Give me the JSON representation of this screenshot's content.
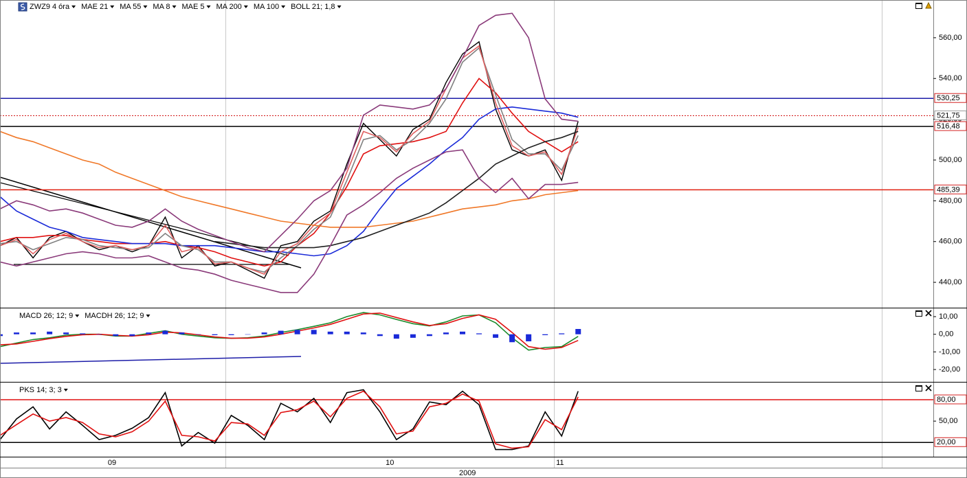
{
  "chart_data": [
    {
      "type": "line",
      "xlim": [
        0,
        56.5
      ],
      "ylim": [
        427.9,
        578.5
      ],
      "x": [
        0,
        1,
        2,
        3,
        4,
        5,
        6,
        7,
        8,
        9,
        10,
        11,
        12,
        13,
        14,
        15,
        16,
        17,
        18,
        19,
        20,
        21,
        22,
        23,
        24,
        25,
        26,
        27,
        28,
        29,
        30,
        31,
        32,
        33,
        34,
        35
      ],
      "yticks": [
        {
          "value": 440,
          "label": "440,00"
        },
        {
          "value": 460,
          "label": "460,00"
        },
        {
          "value": 480,
          "label": "480,00"
        },
        {
          "value": 500,
          "label": "500,00"
        },
        {
          "value": 520,
          "label": "520,00"
        },
        {
          "value": 540,
          "label": "540,00"
        },
        {
          "value": 560,
          "label": "560,00"
        }
      ],
      "levels": [
        {
          "value": 530.25,
          "label": "530,25",
          "color": "#1c1ca8",
          "label_color": "#d42020",
          "dash": false
        },
        {
          "value": 521.75,
          "label": "521,75",
          "color": "#d42020",
          "label_color": "#333333",
          "dash": true
        },
        {
          "value": 516.48,
          "label": "516,48",
          "color": "#000000",
          "label_color": "#d42020",
          "dash": false
        },
        {
          "value": 485.39,
          "label": "485,39",
          "color": "#e02010",
          "label_color": "#d42020",
          "dash": false
        }
      ],
      "series": [
        {
          "name": "ZWZ9 4 óra",
          "color": "#000000",
          "values": [
            458,
            462,
            452,
            462,
            465,
            460,
            456,
            458,
            455,
            458,
            472,
            452,
            458,
            448,
            450,
            446,
            442,
            458,
            460,
            470,
            475,
            498,
            518,
            510,
            502,
            515,
            520,
            538,
            552,
            558,
            525,
            505,
            502,
            505,
            490,
            519
          ]
        },
        {
          "name": "MAE 21",
          "color": "#e01010",
          "values": [
            460,
            462,
            462,
            463,
            463,
            461,
            460,
            459,
            459,
            459,
            460,
            458,
            457,
            455,
            452,
            450,
            448,
            450,
            458,
            464,
            474,
            487,
            503,
            507,
            508,
            509,
            511,
            514,
            528,
            540,
            533,
            523,
            514,
            509,
            504,
            509
          ]
        },
        {
          "name": "MA 55",
          "color": "#1a2ad8",
          "values": [
            482,
            475,
            471,
            467,
            465,
            462,
            461,
            460,
            459,
            459,
            459,
            458,
            458,
            458,
            457,
            456,
            455,
            455,
            454,
            453,
            454,
            458,
            465,
            476,
            486,
            492,
            498,
            505,
            511,
            520,
            525,
            526,
            525,
            524,
            523,
            521
          ]
        },
        {
          "name": "MA 8",
          "color": "#808080",
          "values": [
            459,
            460,
            456,
            459,
            462,
            461,
            458,
            457,
            456,
            457,
            464,
            458,
            456,
            450,
            450,
            447,
            445,
            452,
            458,
            466,
            472,
            490,
            510,
            512,
            505,
            510,
            518,
            530,
            548,
            555,
            532,
            510,
            503,
            503,
            495,
            512
          ]
        },
        {
          "name": "MAE 5",
          "color": "#e06060",
          "values": [
            458,
            461,
            454,
            461,
            464,
            460,
            457,
            458,
            456,
            458,
            468,
            455,
            457,
            449,
            450,
            447,
            444,
            455,
            459,
            468,
            474,
            494,
            514,
            511,
            504,
            513,
            519,
            535,
            550,
            556,
            528,
            507,
            502,
            504,
            493,
            516
          ]
        },
        {
          "name": "MA 200",
          "color": "#f07828",
          "values": [
            514,
            511,
            509,
            506,
            503,
            500,
            498,
            494,
            491,
            488,
            485,
            482,
            480,
            478,
            476,
            474,
            472,
            470,
            469,
            468,
            467,
            467,
            467,
            468,
            469,
            470,
            472,
            474,
            476,
            477,
            478,
            480,
            481,
            483,
            484,
            485
          ]
        },
        {
          "name": "MA 100",
          "color": "#202020",
          "values": [
            null,
            null,
            null,
            null,
            null,
            null,
            null,
            null,
            null,
            null,
            null,
            null,
            null,
            460,
            459,
            458,
            457,
            457,
            457,
            457,
            458,
            460,
            462,
            465,
            468,
            471,
            474,
            479,
            485,
            491,
            498,
            502,
            506,
            509,
            511,
            514
          ]
        },
        {
          "name": "BOLL 21; 1,8",
          "color": "#8a3a7a",
          "upper": [
            476,
            480,
            478,
            475,
            476,
            474,
            471,
            468,
            467,
            470,
            476,
            470,
            466,
            463,
            460,
            457,
            455,
            463,
            471,
            480,
            485,
            496,
            522,
            527,
            526,
            525,
            527,
            535,
            550,
            566,
            571,
            572,
            560,
            530,
            520,
            519
          ],
          "lower": [
            450,
            448,
            450,
            452,
            454,
            455,
            454,
            452,
            452,
            453,
            450,
            447,
            446,
            444,
            441,
            439,
            437,
            435,
            435,
            444,
            458,
            473,
            478,
            484,
            491,
            496,
            500,
            504,
            505,
            491,
            484,
            491,
            481,
            488,
            488,
            489
          ]
        }
      ]
    },
    {
      "type": "line",
      "xlim": [
        0,
        56.5
      ],
      "ylim": [
        -26.6,
        14.3
      ],
      "x": [
        0,
        1,
        2,
        3,
        4,
        5,
        6,
        7,
        8,
        9,
        10,
        11,
        12,
        13,
        14,
        15,
        16,
        17,
        18,
        19,
        20,
        21,
        22,
        23,
        24,
        25,
        26,
        27,
        28,
        29,
        30,
        31,
        32,
        33,
        34,
        35
      ],
      "yticks": [
        {
          "value": 10,
          "label": "10,00"
        },
        {
          "value": 0,
          "label": "0,00"
        },
        {
          "value": -10,
          "label": "-10,00"
        },
        {
          "value": -20,
          "label": "-20,00"
        }
      ],
      "series": [
        {
          "name": "MACD 26; 12; 9",
          "color": "#1a8a2a",
          "values": [
            -7,
            -5,
            -3,
            -2,
            -0.5,
            0,
            0,
            -1,
            -1,
            0.5,
            2,
            0,
            -1,
            -2,
            -2.3,
            -2,
            -1,
            1,
            2.6,
            4.5,
            6.5,
            10,
            12.3,
            11,
            8.4,
            6,
            4.7,
            7,
            10.4,
            11,
            6.5,
            -2,
            -9,
            -7.5,
            -7,
            -1.2
          ]
        },
        {
          "color": "#e01010",
          "values": [
            -6,
            -5.5,
            -4,
            -2.5,
            -1.2,
            -0.3,
            0,
            -0.6,
            -1,
            -0.3,
            1.2,
            0.8,
            -0.3,
            -1.5,
            -2.2,
            -2.2,
            -1.5,
            0,
            1.8,
            3.6,
            5.6,
            8.5,
            11.5,
            12,
            9.5,
            7,
            5,
            6,
            9,
            11,
            8.5,
            1,
            -7,
            -8.5,
            -7.5,
            -3.5
          ]
        },
        {
          "name": "MACDH 26; 12; 9",
          "color": "#1a2ad8",
          "type": "bar",
          "values": [
            -1,
            1,
            1,
            1.5,
            1,
            0.5,
            0,
            -1,
            -1,
            1,
            2,
            1,
            0,
            -0.5,
            -0.5,
            0,
            1,
            2,
            2.5,
            2.5,
            1.5,
            1.5,
            1,
            -1,
            -2.5,
            -2,
            -1,
            1,
            1.5,
            0.5,
            -2,
            -4.5,
            -4,
            -0.5,
            0.5,
            3
          ]
        }
      ]
    },
    {
      "type": "line",
      "xlim": [
        0,
        56.5
      ],
      "ylim": [
        0,
        103.2
      ],
      "x": [
        0,
        1,
        2,
        3,
        4,
        5,
        6,
        7,
        8,
        9,
        10,
        11,
        12,
        13,
        14,
        15,
        16,
        17,
        18,
        19,
        20,
        21,
        22,
        23,
        24,
        25,
        26,
        27,
        28,
        29,
        30,
        31,
        32,
        33,
        34,
        35
      ],
      "yticks": [
        {
          "value": 50,
          "label": "50,00"
        }
      ],
      "levels": [
        {
          "value": 80,
          "label": "80,00",
          "color": "#e01010",
          "label_color": "#d42020",
          "dash": false
        },
        {
          "value": 20,
          "label": "20,00",
          "color": "#000000",
          "label_color": "#d42020",
          "dash": false
        }
      ],
      "series": [
        {
          "name": "PKS 14; 3; 3",
          "color": "#000000",
          "values": [
            24,
            53,
            70,
            39,
            63,
            44,
            24,
            30,
            40,
            55,
            90,
            15,
            34,
            19,
            58,
            44,
            24,
            75,
            63,
            82,
            48,
            90,
            94,
            63,
            24,
            39,
            77,
            73,
            92,
            73,
            10,
            10,
            15,
            63,
            29,
            92
          ]
        },
        {
          "color": "#e01010",
          "values": [
            30,
            45,
            60,
            50,
            55,
            48,
            32,
            28,
            35,
            50,
            78,
            30,
            28,
            22,
            48,
            46,
            30,
            62,
            66,
            78,
            56,
            82,
            92,
            70,
            32,
            36,
            70,
            75,
            88,
            78,
            18,
            12,
            14,
            52,
            38,
            84
          ]
        }
      ],
      "xticks": [
        {
          "value": 6.78,
          "label": "09"
        },
        {
          "value": 23.6,
          "label": "10"
        },
        {
          "value": 33.9,
          "label": "11"
        }
      ],
      "x_grid": [
        13.65,
        33.55,
        53.4
      ],
      "year_label": {
        "value": 28.3,
        "label": "2009"
      }
    }
  ]
}
